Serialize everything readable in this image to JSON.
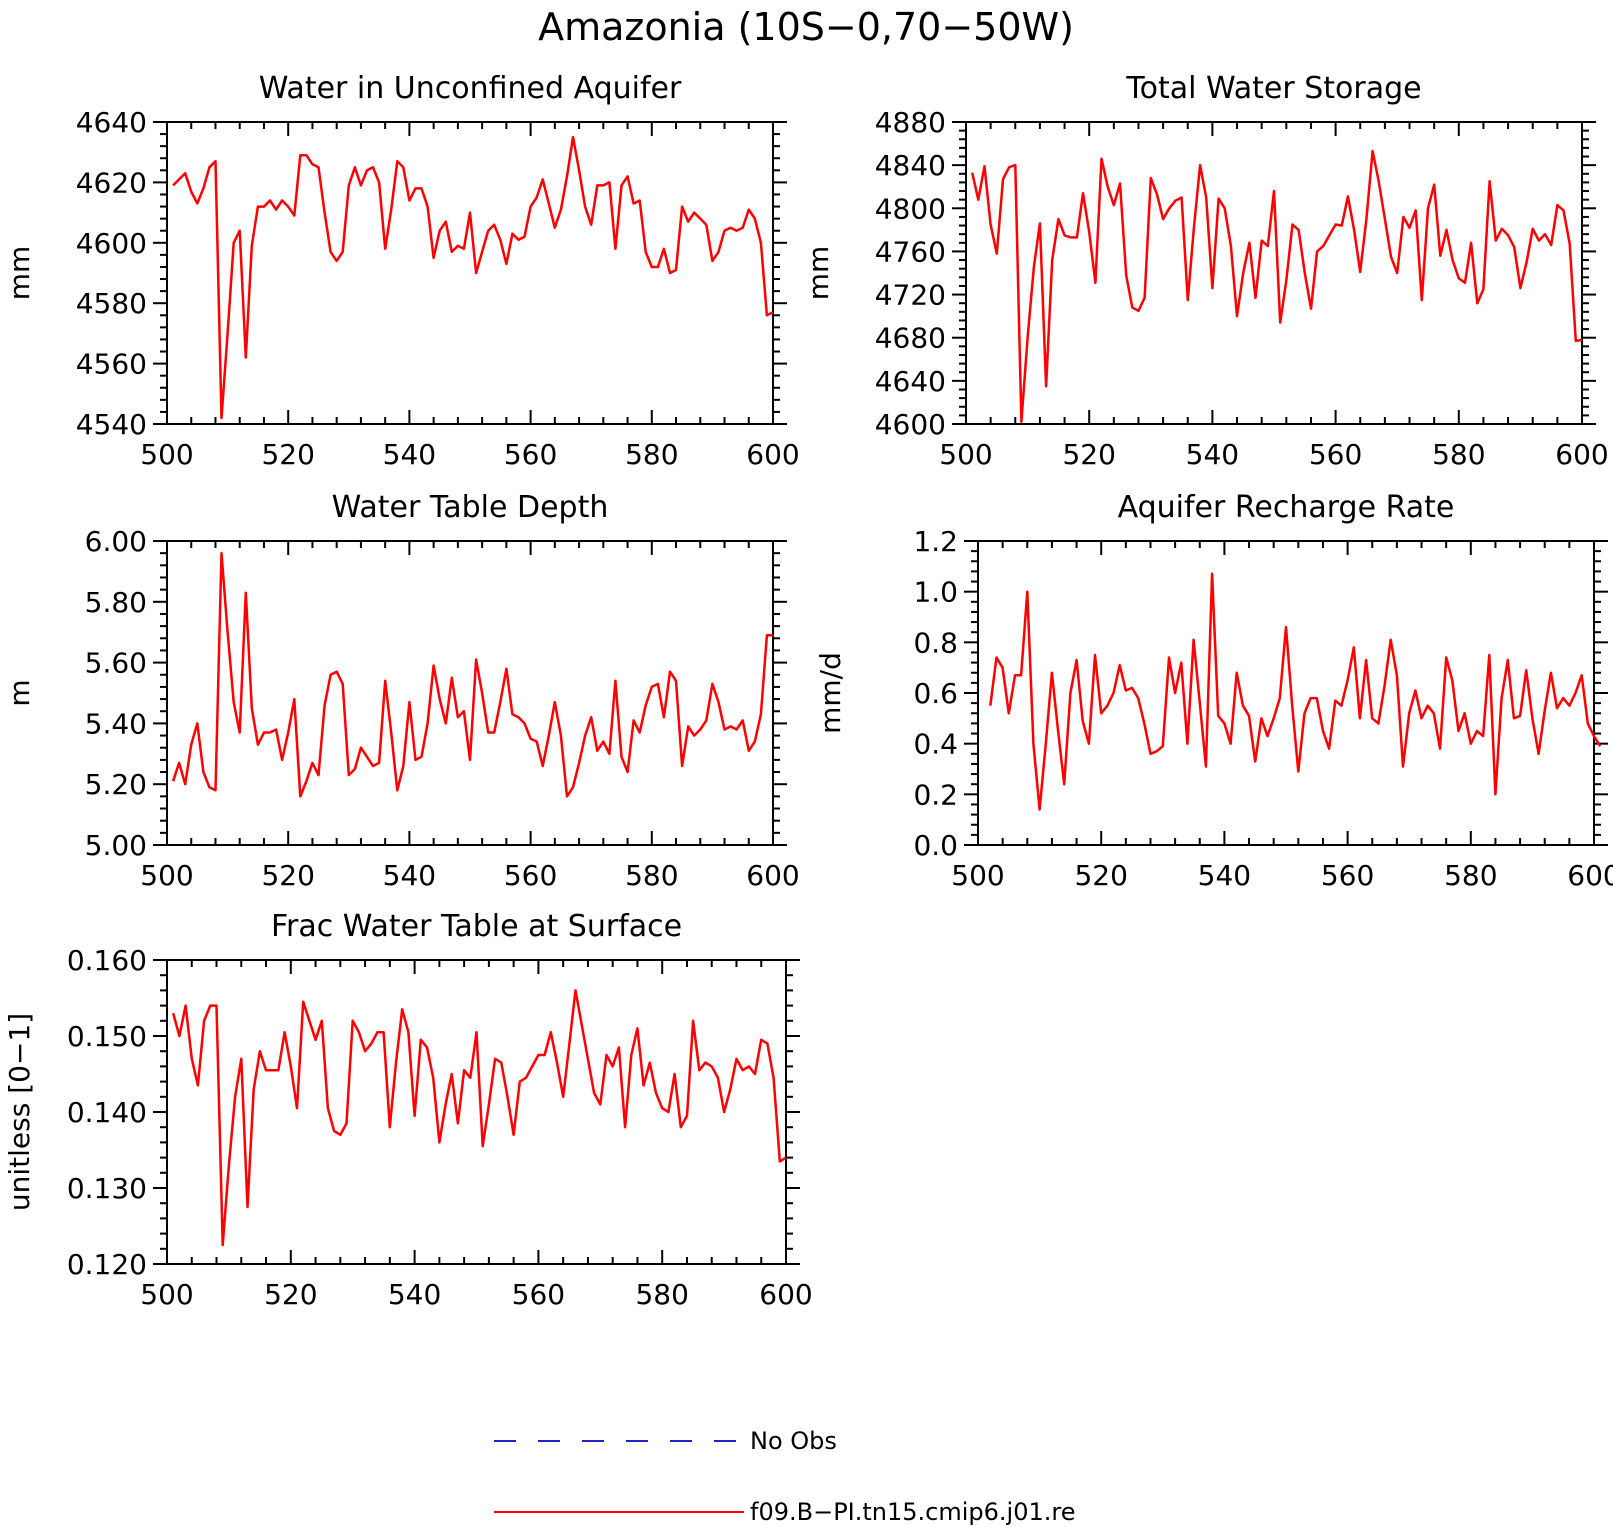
{
  "figure_title": "Amazonia (10S−0,70−50W)",
  "series_colors": {
    "model": "#ff0000",
    "obs": "#2222cc"
  },
  "legend": {
    "obs_label": "No Obs",
    "model_label": "f09.B−PI.tn15.cmip6.j01.re"
  },
  "chart_data": [
    {
      "type": "line",
      "title": "Water in Unconfined Aquifer",
      "xlabel": "",
      "ylabel": "mm",
      "xlim": [
        500,
        600
      ],
      "ylim": [
        4540,
        4640
      ],
      "xticks": [
        500,
        520,
        540,
        560,
        580,
        600
      ],
      "xtick_labels": [
        "500",
        "520",
        "540",
        "560",
        "580",
        "600"
      ],
      "yticks": [
        4540,
        4560,
        4580,
        4600,
        4620,
        4640
      ],
      "ytick_labels": [
        "4540",
        "4560",
        "4580",
        "4600",
        "4620",
        "4640"
      ],
      "x_start": 501,
      "x_step": 1,
      "series": [
        {
          "values": [
            4619,
            4621,
            4623,
            4617,
            4613,
            4618,
            4625,
            4627,
            4542,
            4570,
            4600,
            4604,
            4562,
            4599,
            4612,
            4612,
            4614,
            4611,
            4614,
            4612,
            4609,
            4629,
            4629,
            4626,
            4625,
            4610,
            4597,
            4594,
            4597,
            4619,
            4625,
            4619,
            4624,
            4625,
            4620,
            4598,
            4611,
            4627,
            4625,
            4614,
            4618,
            4618,
            4612,
            4595,
            4604,
            4607,
            4597,
            4599,
            4598,
            4610,
            4590,
            4597,
            4604,
            4606,
            4601,
            4593,
            4603,
            4601,
            4602,
            4612,
            4615,
            4621,
            4613,
            4605,
            4611,
            4622,
            4635,
            4624,
            4612,
            4606,
            4619,
            4619,
            4620,
            4598,
            4619,
            4622,
            4613,
            4614,
            4597,
            4592,
            4592,
            4598,
            4590,
            4591,
            4612,
            4607,
            4610,
            4608,
            4606,
            4594,
            4597,
            4604,
            4605,
            4604,
            4605,
            4611,
            4608,
            4600,
            4576,
            4577
          ]
        }
      ]
    },
    {
      "type": "line",
      "title": "Total Water Storage",
      "xlabel": "",
      "ylabel": "mm",
      "xlim": [
        500,
        600
      ],
      "ylim": [
        4600,
        4880
      ],
      "xticks": [
        500,
        520,
        540,
        560,
        580,
        600
      ],
      "xtick_labels": [
        "500",
        "520",
        "540",
        "560",
        "580",
        "600"
      ],
      "yticks": [
        4600,
        4640,
        4680,
        4720,
        4760,
        4800,
        4840,
        4880
      ],
      "ytick_labels": [
        "4600",
        "4640",
        "4680",
        "4720",
        "4760",
        "4800",
        "4840",
        "4880"
      ],
      "x_start": 501,
      "x_step": 1,
      "series": [
        {
          "values": [
            4833,
            4808,
            4839,
            4785,
            4758,
            4827,
            4838,
            4840,
            4602,
            4680,
            4745,
            4786,
            4635,
            4752,
            4790,
            4775,
            4773,
            4773,
            4814,
            4778,
            4731,
            4846,
            4820,
            4803,
            4823,
            4738,
            4708,
            4705,
            4717,
            4828,
            4813,
            4790,
            4800,
            4807,
            4810,
            4715,
            4782,
            4840,
            4810,
            4726,
            4809,
            4800,
            4765,
            4700,
            4740,
            4768,
            4717,
            4770,
            4765,
            4816,
            4694,
            4733,
            4785,
            4780,
            4740,
            4707,
            4760,
            4765,
            4775,
            4785,
            4784,
            4811,
            4780,
            4741,
            4790,
            4853,
            4825,
            4790,
            4755,
            4740,
            4792,
            4782,
            4798,
            4715,
            4800,
            4822,
            4756,
            4780,
            4752,
            4735,
            4731,
            4768,
            4712,
            4725,
            4825,
            4770,
            4781,
            4775,
            4764,
            4726,
            4750,
            4781,
            4770,
            4776,
            4766,
            4803,
            4798,
            4767,
            4677,
            4678
          ]
        }
      ]
    },
    {
      "type": "line",
      "title": "Water Table Depth",
      "xlabel": "",
      "ylabel": "m",
      "xlim": [
        500,
        600
      ],
      "ylim": [
        5.0,
        6.0
      ],
      "xticks": [
        500,
        520,
        540,
        560,
        580,
        600
      ],
      "xtick_labels": [
        "500",
        "520",
        "540",
        "560",
        "580",
        "600"
      ],
      "yticks": [
        5.0,
        5.2,
        5.4,
        5.6,
        5.8,
        6.0
      ],
      "ytick_labels": [
        "5.00",
        "5.20",
        "5.40",
        "5.60",
        "5.80",
        "6.00"
      ],
      "x_start": 501,
      "x_step": 1,
      "series": [
        {
          "values": [
            5.21,
            5.27,
            5.2,
            5.33,
            5.4,
            5.24,
            5.19,
            5.18,
            5.96,
            5.7,
            5.47,
            5.37,
            5.83,
            5.45,
            5.33,
            5.37,
            5.37,
            5.38,
            5.28,
            5.37,
            5.48,
            5.16,
            5.21,
            5.27,
            5.23,
            5.46,
            5.56,
            5.57,
            5.53,
            5.23,
            5.25,
            5.32,
            5.29,
            5.26,
            5.27,
            5.54,
            5.37,
            5.18,
            5.26,
            5.47,
            5.28,
            5.29,
            5.4,
            5.59,
            5.48,
            5.4,
            5.55,
            5.42,
            5.44,
            5.28,
            5.61,
            5.5,
            5.37,
            5.37,
            5.47,
            5.58,
            5.43,
            5.42,
            5.4,
            5.35,
            5.34,
            5.26,
            5.36,
            5.47,
            5.36,
            5.16,
            5.19,
            5.27,
            5.36,
            5.42,
            5.31,
            5.34,
            5.3,
            5.54,
            5.29,
            5.24,
            5.41,
            5.37,
            5.46,
            5.52,
            5.53,
            5.42,
            5.57,
            5.54,
            5.26,
            5.39,
            5.36,
            5.38,
            5.41,
            5.53,
            5.47,
            5.38,
            5.39,
            5.38,
            5.41,
            5.31,
            5.34,
            5.43,
            5.69,
            5.69
          ]
        }
      ]
    },
    {
      "type": "line",
      "title": "Aquifer Recharge Rate",
      "xlabel": "",
      "ylabel": "mm/d",
      "xlim": [
        500,
        600
      ],
      "ylim": [
        0.0,
        1.2
      ],
      "xticks": [
        500,
        520,
        540,
        560,
        580,
        600
      ],
      "xtick_labels": [
        "500",
        "520",
        "540",
        "560",
        "580",
        "600"
      ],
      "yticks": [
        0.0,
        0.2,
        0.4,
        0.6,
        0.8,
        1.0,
        1.2
      ],
      "ytick_labels": [
        "0.0",
        "0.2",
        "0.4",
        "0.6",
        "0.8",
        "1.0",
        "1.2"
      ],
      "x_start": 502,
      "x_step": 1,
      "series": [
        {
          "values": [
            0.55,
            0.74,
            0.7,
            0.52,
            0.67,
            0.67,
            1.0,
            0.4,
            0.14,
            0.4,
            0.68,
            0.45,
            0.24,
            0.6,
            0.73,
            0.49,
            0.4,
            0.75,
            0.52,
            0.55,
            0.6,
            0.71,
            0.61,
            0.62,
            0.58,
            0.48,
            0.36,
            0.37,
            0.39,
            0.74,
            0.6,
            0.72,
            0.4,
            0.81,
            0.56,
            0.31,
            1.07,
            0.51,
            0.48,
            0.4,
            0.68,
            0.55,
            0.51,
            0.33,
            0.5,
            0.43,
            0.5,
            0.58,
            0.86,
            0.55,
            0.29,
            0.52,
            0.58,
            0.58,
            0.45,
            0.38,
            0.57,
            0.55,
            0.65,
            0.78,
            0.5,
            0.73,
            0.5,
            0.48,
            0.63,
            0.81,
            0.67,
            0.31,
            0.52,
            0.61,
            0.5,
            0.55,
            0.52,
            0.38,
            0.74,
            0.65,
            0.45,
            0.52,
            0.4,
            0.45,
            0.43,
            0.75,
            0.2,
            0.58,
            0.73,
            0.5,
            0.51,
            0.69,
            0.5,
            0.36,
            0.53,
            0.68,
            0.54,
            0.58,
            0.55,
            0.6,
            0.67,
            0.48,
            0.43,
            0.39
          ]
        }
      ]
    },
    {
      "type": "line",
      "title": "Frac Water Table at Surface",
      "xlabel": "",
      "ylabel": "unitless [0−1]",
      "xlim": [
        500,
        600
      ],
      "ylim": [
        0.12,
        0.16
      ],
      "xticks": [
        500,
        520,
        540,
        560,
        580,
        600
      ],
      "xtick_labels": [
        "500",
        "520",
        "540",
        "560",
        "580",
        "600"
      ],
      "yticks": [
        0.12,
        0.13,
        0.14,
        0.15,
        0.16
      ],
      "ytick_labels": [
        "0.120",
        "0.130",
        "0.140",
        "0.150",
        "0.160"
      ],
      "x_start": 501,
      "x_step": 1,
      "series": [
        {
          "values": [
            0.153,
            0.15,
            0.154,
            0.147,
            0.1435,
            0.152,
            0.154,
            0.154,
            0.1225,
            0.133,
            0.142,
            0.147,
            0.1275,
            0.143,
            0.148,
            0.1455,
            0.1455,
            0.1455,
            0.1505,
            0.146,
            0.1405,
            0.1545,
            0.152,
            0.1495,
            0.152,
            0.1405,
            0.1375,
            0.137,
            0.1385,
            0.152,
            0.1505,
            0.148,
            0.149,
            0.1505,
            0.1505,
            0.138,
            0.1465,
            0.1535,
            0.1505,
            0.1395,
            0.1495,
            0.1485,
            0.1445,
            0.136,
            0.141,
            0.145,
            0.1385,
            0.1455,
            0.1445,
            0.1505,
            0.1355,
            0.141,
            0.147,
            0.1465,
            0.142,
            0.137,
            0.144,
            0.1445,
            0.146,
            0.1475,
            0.1475,
            0.1505,
            0.1465,
            0.142,
            0.149,
            0.156,
            0.1515,
            0.147,
            0.1425,
            0.141,
            0.1475,
            0.146,
            0.1485,
            0.138,
            0.1475,
            0.151,
            0.1435,
            0.1465,
            0.1425,
            0.1405,
            0.14,
            0.145,
            0.138,
            0.1395,
            0.152,
            0.1455,
            0.1465,
            0.146,
            0.1445,
            0.14,
            0.143,
            0.147,
            0.1455,
            0.146,
            0.145,
            0.1495,
            0.149,
            0.1445,
            0.1335,
            0.134
          ]
        }
      ]
    }
  ]
}
